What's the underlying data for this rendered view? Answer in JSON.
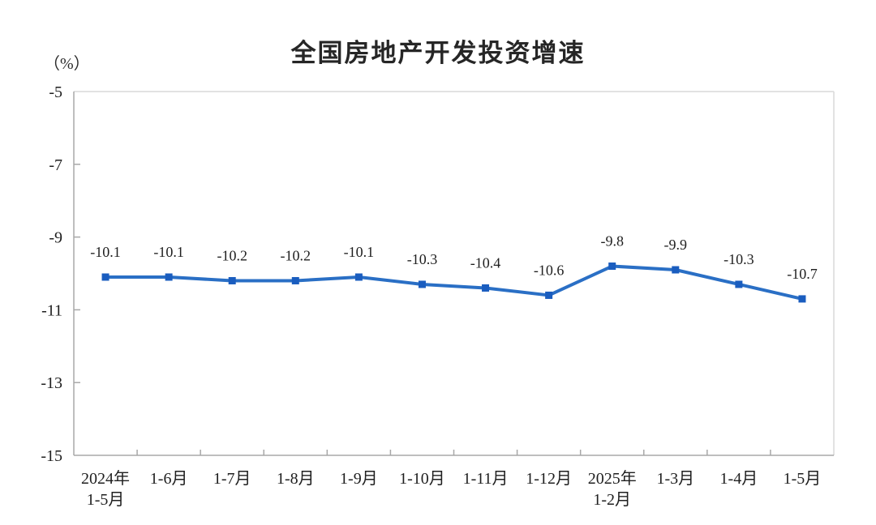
{
  "chart_data": {
    "type": "line",
    "title": "全国房地产开发投资增速",
    "unit_label": "（%）",
    "categories": [
      [
        "2024年",
        "1-5月"
      ],
      [
        "1-6月"
      ],
      [
        "1-7月"
      ],
      [
        "1-8月"
      ],
      [
        "1-9月"
      ],
      [
        "1-10月"
      ],
      [
        "1-11月"
      ],
      [
        "1-12月"
      ],
      [
        "2025年",
        "1-2月"
      ],
      [
        "1-3月"
      ],
      [
        "1-4月"
      ],
      [
        "1-5月"
      ]
    ],
    "values": [
      -10.1,
      -10.1,
      -10.2,
      -10.2,
      -10.1,
      -10.3,
      -10.4,
      -10.6,
      -9.8,
      -9.9,
      -10.3,
      -10.7
    ],
    "data_labels": [
      "-10.1",
      "-10.1",
      "-10.2",
      "-10.2",
      "-10.1",
      "-10.3",
      "-10.4",
      "-10.6",
      "-9.8",
      "-9.9",
      "-10.3",
      "-10.7"
    ],
    "ylim": [
      -15,
      -5
    ],
    "yticks": [
      -5,
      -7,
      -9,
      -11,
      -13,
      -15
    ],
    "ytick_labels": [
      "-5",
      "-7",
      "-9",
      "-11",
      "-13",
      "-15"
    ],
    "grid": false,
    "legend": false,
    "colors": {
      "line": "#2a6fc5",
      "marker": "#1a5dbf",
      "axis_light": "#d9d9d9",
      "axis_dark": "#a8a8a8",
      "text": "#1f1f1f",
      "title": "#262626",
      "background": "#ffffff"
    }
  }
}
